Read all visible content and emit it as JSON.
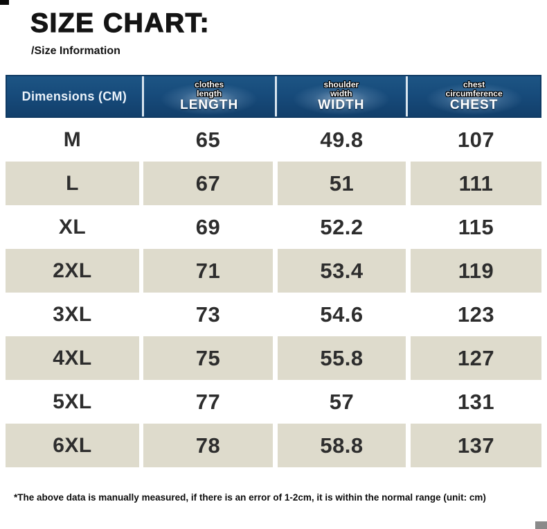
{
  "page": {
    "title": "SIZE CHART:",
    "subtitle": "/Size Information",
    "footnote": "*The above data is manually measured, if there is an error of 1-2cm, it is within the normal range (unit: cm)"
  },
  "colors": {
    "header_bg": "#174b7b",
    "header_border": "#0f3a63",
    "header_text": "#ffffff",
    "row_bg": "#ffffff",
    "row_alt_bg": "#dedbcc",
    "data_text": "#2d2d2d"
  },
  "chart_data": {
    "type": "table",
    "title": "SIZE CHART:",
    "columns": [
      {
        "key": "size",
        "header": "Dimensions (CM)",
        "sub1": "",
        "sub2": ""
      },
      {
        "key": "length",
        "header": "LENGTH",
        "sub1": "clothes",
        "sub2": "length"
      },
      {
        "key": "width",
        "header": "WIDTH",
        "sub1": "shoulder",
        "sub2": "width"
      },
      {
        "key": "chest",
        "header": "CHEST",
        "sub1": "chest",
        "sub2": "circumference"
      }
    ],
    "rows": [
      {
        "size": "M",
        "length": "65",
        "width": "49.8",
        "chest": "107"
      },
      {
        "size": "L",
        "length": "67",
        "width": "51",
        "chest": "111"
      },
      {
        "size": "XL",
        "length": "69",
        "width": "52.2",
        "chest": "115"
      },
      {
        "size": "2XL",
        "length": "71",
        "width": "53.4",
        "chest": "119"
      },
      {
        "size": "3XL",
        "length": "73",
        "width": "54.6",
        "chest": "123"
      },
      {
        "size": "4XL",
        "length": "75",
        "width": "55.8",
        "chest": "127"
      },
      {
        "size": "5XL",
        "length": "77",
        "width": "57",
        "chest": "131"
      },
      {
        "size": "6XL",
        "length": "78",
        "width": "58.8",
        "chest": "137"
      }
    ],
    "layout": {
      "unit": "cm",
      "alternating_rows": true,
      "header_position": "top"
    }
  }
}
